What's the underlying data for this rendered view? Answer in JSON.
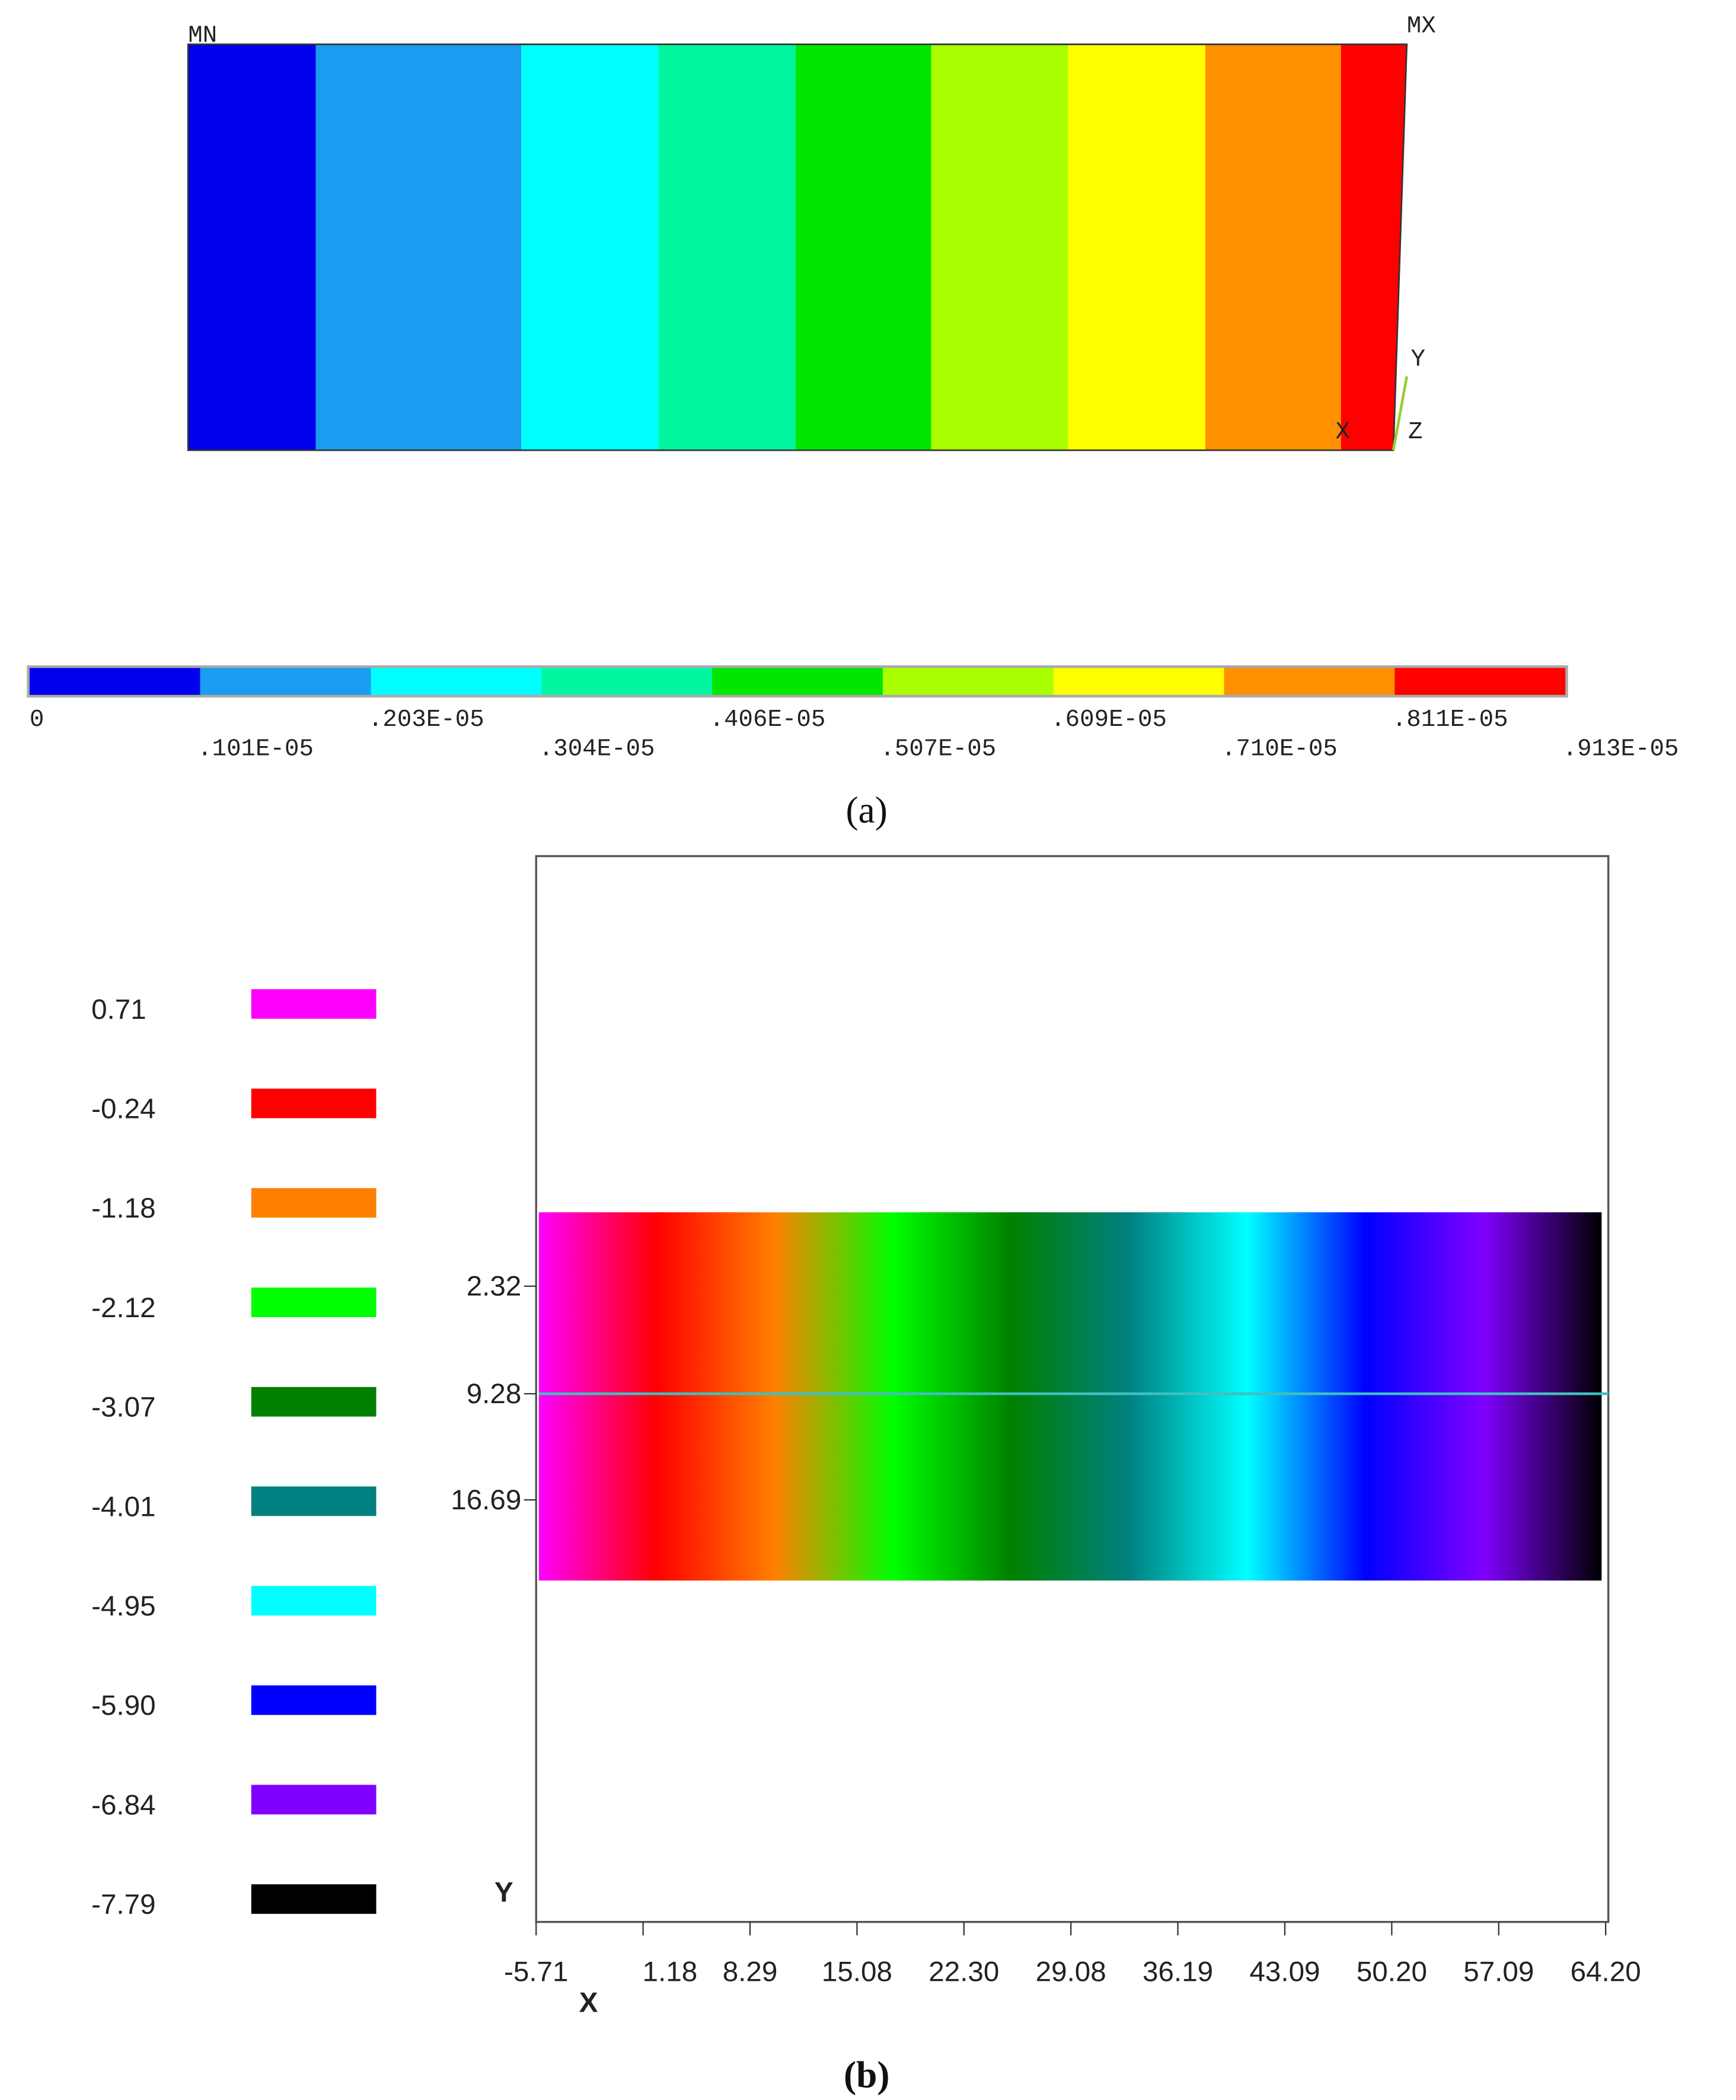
{
  "panel_a": {
    "min_label": "MN",
    "max_label": "MX",
    "triad_labels": [
      "Y",
      "X",
      "Z"
    ],
    "band_colors": [
      "#0000ee",
      "#1a9cf0",
      "#00ffff",
      "#00f7a0",
      "#00e600",
      "#aaff00",
      "#ffff00",
      "#ff9000",
      "#ff0000"
    ],
    "colorbar_labels": [
      "0",
      ".101E-05",
      ".203E-05",
      ".304E-05",
      ".406E-05",
      ".507E-05",
      ".609E-05",
      ".710E-05",
      ".811E-05",
      ".913E-05"
    ],
    "caption": "(a)"
  },
  "panel_b": {
    "legend": [
      {
        "label": "0.71",
        "color": "#ff00ff"
      },
      {
        "label": "-0.24",
        "color": "#ff0000"
      },
      {
        "label": "-1.18",
        "color": "#ff8000"
      },
      {
        "label": "-2.12",
        "color": "#00ff00"
      },
      {
        "label": "-3.07",
        "color": "#008000"
      },
      {
        "label": "-4.01",
        "color": "#008080"
      },
      {
        "label": "-4.95",
        "color": "#00ffff"
      },
      {
        "label": "-5.90",
        "color": "#0000ff"
      },
      {
        "label": "-6.84",
        "color": "#8000ff"
      },
      {
        "label": "-7.79",
        "color": "#000000"
      }
    ],
    "y_axis_label": "Y",
    "x_axis_label": "X",
    "yticks": [
      "2.32",
      "9.28",
      "16.69"
    ],
    "xticks": [
      "-5.71",
      "1.18",
      "8.29",
      "15.08",
      "22.30",
      "29.08",
      "36.19",
      "43.09",
      "50.20",
      "57.09",
      "64.20"
    ],
    "caption": "(b)"
  }
}
